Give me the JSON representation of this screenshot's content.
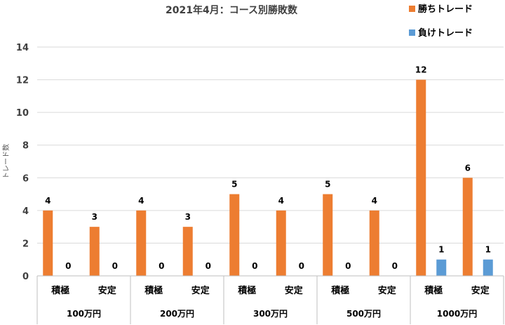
{
  "chart_data": {
    "type": "bar",
    "title": "2021年4月：コース別勝敗数",
    "ylabel": "トレード数",
    "ylim": [
      0,
      14
    ],
    "yticks": [
      0,
      2,
      4,
      6,
      8,
      10,
      12,
      14
    ],
    "grid": true,
    "legend_position": "top-right",
    "groups": [
      {
        "label": "100万円",
        "categories": [
          "積極",
          "安定"
        ]
      },
      {
        "label": "200万円",
        "categories": [
          "積極",
          "安定"
        ]
      },
      {
        "label": "300万円",
        "categories": [
          "積極",
          "安定"
        ]
      },
      {
        "label": "500万円",
        "categories": [
          "積極",
          "安定"
        ]
      },
      {
        "label": "1000万円",
        "categories": [
          "積極",
          "安定"
        ]
      }
    ],
    "series": [
      {
        "name": "勝ちトレード",
        "color": "#ED7D31",
        "values": [
          4,
          3,
          4,
          3,
          5,
          4,
          5,
          4,
          12,
          6
        ]
      },
      {
        "name": "負けトレード",
        "color": "#5B9BD5",
        "values": [
          0,
          0,
          0,
          0,
          0,
          0,
          0,
          0,
          1,
          1
        ]
      }
    ]
  }
}
